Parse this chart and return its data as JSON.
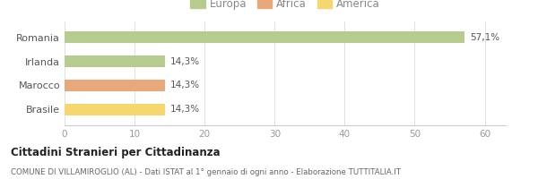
{
  "categories": [
    "Romania",
    "Irlanda",
    "Marocco",
    "Brasile"
  ],
  "values": [
    57.1,
    14.3,
    14.3,
    14.3
  ],
  "labels": [
    "57,1%",
    "14,3%",
    "14,3%",
    "14,3%"
  ],
  "bar_colors": [
    "#b5cc8e",
    "#b5cc8e",
    "#e8a87c",
    "#f5d76e"
  ],
  "legend": [
    {
      "label": "Europa",
      "color": "#b5cc8e"
    },
    {
      "label": "Africa",
      "color": "#e8a87c"
    },
    {
      "label": "America",
      "color": "#f5d76e"
    }
  ],
  "xlim": [
    0,
    63
  ],
  "xticks": [
    0,
    10,
    20,
    30,
    40,
    50,
    60
  ],
  "title": "Cittadini Stranieri per Cittadinanza",
  "subtitle": "COMUNE DI VILLAMIROGLIO (AL) - Dati ISTAT al 1° gennaio di ogni anno - Elaborazione TUTTITALIA.IT",
  "background_color": "#ffffff",
  "bar_height": 0.5
}
